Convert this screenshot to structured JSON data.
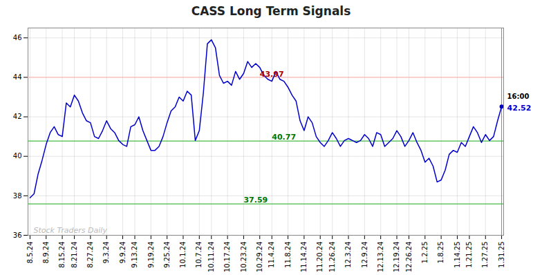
{
  "chart_data": {
    "type": "line",
    "title": "CASS Long Term Signals",
    "categories": [
      "8.5.24",
      null,
      null,
      null,
      "8.9.24",
      null,
      null,
      null,
      "8.15.24",
      null,
      null,
      "8.21.24",
      null,
      null,
      null,
      "8.27.24",
      null,
      null,
      null,
      "9.3.24",
      null,
      null,
      null,
      "9.9.24",
      null,
      null,
      "9.13.24",
      null,
      null,
      null,
      "9.19.24",
      null,
      null,
      null,
      "9.25.24",
      null,
      null,
      null,
      "10.1.24",
      null,
      null,
      null,
      "10.7.24",
      null,
      null,
      "10.11.24",
      null,
      null,
      null,
      "10.17.24",
      null,
      null,
      null,
      "10.23.24",
      null,
      null,
      null,
      "10.29.24",
      null,
      null,
      "11.4.24",
      null,
      null,
      null,
      "11.8.24",
      null,
      null,
      null,
      "11.14.24",
      null,
      null,
      null,
      "11.20.24",
      null,
      null,
      "11.26.24",
      null,
      null,
      null,
      "12.3.24",
      null,
      null,
      null,
      "12.9.24",
      null,
      null,
      null,
      "12.13.24",
      null,
      null,
      null,
      "12.19.24",
      null,
      null,
      "12.26.24",
      null,
      null,
      null,
      "1.2.25",
      null,
      null,
      null,
      "1.8.25",
      null,
      null,
      null,
      "1.14.25",
      null,
      null,
      "1.21.25",
      null,
      null,
      null,
      "1.27.25",
      null,
      null,
      null,
      "1.31.25"
    ],
    "values": [
      37.9,
      38.1,
      39.1,
      39.8,
      40.6,
      41.2,
      41.5,
      41.1,
      41.0,
      42.7,
      42.5,
      43.1,
      42.8,
      42.2,
      41.8,
      41.7,
      41.0,
      40.9,
      41.3,
      41.8,
      41.4,
      41.2,
      40.8,
      40.6,
      40.5,
      41.5,
      41.6,
      42.0,
      41.3,
      40.8,
      40.3,
      40.3,
      40.5,
      41.0,
      41.7,
      42.3,
      42.5,
      43.0,
      42.8,
      43.3,
      43.1,
      40.8,
      41.3,
      43.2,
      45.7,
      45.9,
      45.5,
      44.1,
      43.7,
      43.8,
      43.6,
      44.3,
      43.9,
      44.2,
      44.8,
      44.5,
      44.7,
      44.5,
      44.1,
      43.9,
      43.8,
      44.3,
      43.9,
      43.8,
      43.5,
      43.1,
      42.8,
      41.8,
      41.3,
      42.0,
      41.7,
      41.0,
      40.7,
      40.5,
      40.8,
      41.2,
      40.9,
      40.5,
      40.8,
      40.9,
      40.8,
      40.7,
      40.8,
      41.1,
      40.9,
      40.5,
      41.2,
      41.1,
      40.5,
      40.7,
      40.9,
      41.3,
      41.0,
      40.5,
      40.8,
      41.2,
      40.7,
      40.3,
      39.7,
      39.9,
      39.5,
      38.7,
      38.8,
      39.3,
      40.1,
      40.3,
      40.2,
      40.7,
      40.5,
      41.0,
      41.5,
      41.2,
      40.7,
      41.1,
      40.8,
      41.0,
      41.8,
      42.52
    ],
    "color": "#0000cc",
    "ylim": [
      36,
      46.5
    ],
    "yticks": [
      36,
      38,
      40,
      42,
      44,
      46
    ],
    "grid": true,
    "hlines": [
      {
        "y": 44.0,
        "color": "#ffbbbb"
      },
      {
        "y": 40.77,
        "color": "#44bb44"
      },
      {
        "y": 37.59,
        "color": "#44bb44"
      }
    ],
    "annotations": [
      {
        "text": "43.97",
        "x": "10.29.24",
        "y": 43.97,
        "color": "#aa0000"
      },
      {
        "text": "40.77",
        "x": "11.4.24",
        "y": 40.77,
        "color": "#007700"
      },
      {
        "text": "37.59",
        "x": "10.23.24",
        "y": 37.59,
        "color": "#007700"
      }
    ],
    "last_point": {
      "time_label": "16:00",
      "value_label": "42.52",
      "color": "#0000cc"
    },
    "watermark": "Stock Traders Daily"
  }
}
